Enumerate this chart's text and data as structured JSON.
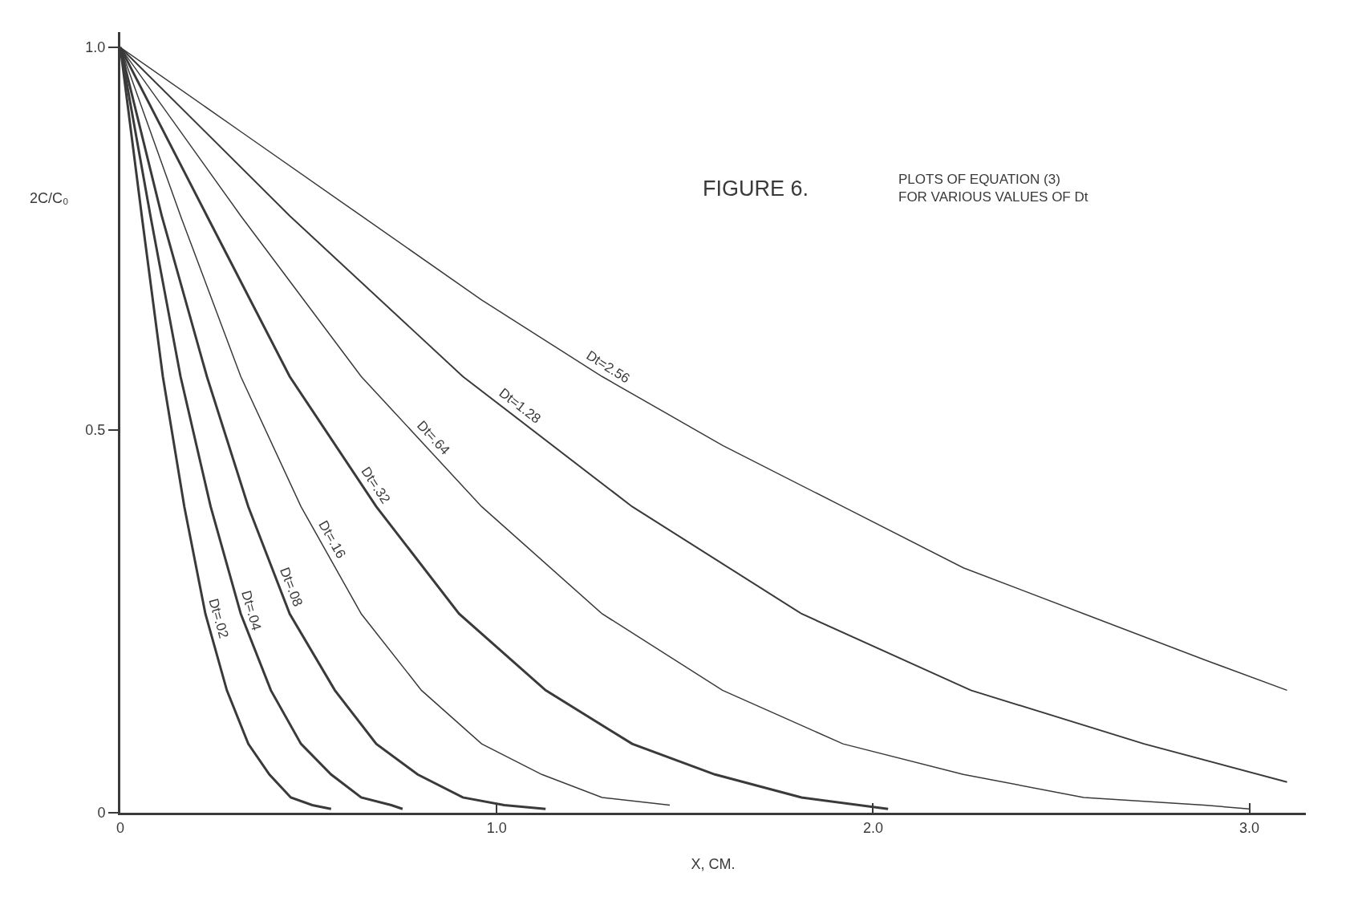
{
  "chart_data": {
    "type": "line",
    "title": "FIGURE 6.",
    "subtitle": "PLOTS OF EQUATION (3)\nFOR VARIOUS VALUES OF Dt",
    "xlabel": "X, CM.",
    "ylabel": "2C/C₀",
    "xlim": [
      0,
      3.15
    ],
    "ylim": [
      0,
      1.02
    ],
    "xticks": [
      {
        "value": 0,
        "label": "0"
      },
      {
        "value": 1,
        "label": "1.0"
      },
      {
        "value": 2,
        "label": "2.0"
      },
      {
        "value": 3,
        "label": "3.0"
      }
    ],
    "yticks": [
      {
        "value": 0,
        "label": "0"
      },
      {
        "value": 0.5,
        "label": "0.5"
      },
      {
        "value": 1,
        "label": "1.0"
      }
    ],
    "grid": false,
    "legend": false,
    "marker": "none",
    "line_style": "solid",
    "series": [
      {
        "name": "Dt=.02",
        "color": "#3a3a3a",
        "x": [
          0,
          0.057,
          0.113,
          0.17,
          0.226,
          0.283,
          0.34,
          0.396,
          0.453,
          0.51,
          0.56
        ],
        "values": [
          1,
          0.78,
          0.57,
          0.4,
          0.26,
          0.16,
          0.09,
          0.05,
          0.02,
          0.01,
          0.005
        ]
      },
      {
        "name": "Dt=.04",
        "color": "#3a3a3a",
        "x": [
          0,
          0.08,
          0.16,
          0.24,
          0.32,
          0.4,
          0.48,
          0.56,
          0.64,
          0.72,
          0.75
        ],
        "values": [
          1,
          0.78,
          0.57,
          0.4,
          0.26,
          0.16,
          0.09,
          0.05,
          0.02,
          0.01,
          0.005
        ]
      },
      {
        "name": "Dt=.08",
        "color": "#3a3a3a",
        "x": [
          0,
          0.11,
          0.23,
          0.34,
          0.45,
          0.57,
          0.68,
          0.79,
          0.91,
          1.02,
          1.13
        ],
        "values": [
          1,
          0.78,
          0.57,
          0.4,
          0.26,
          0.16,
          0.09,
          0.05,
          0.02,
          0.01,
          0.005
        ]
      },
      {
        "name": "Dt=.16",
        "color": "#3a3a3a",
        "x": [
          0,
          0.16,
          0.32,
          0.48,
          0.64,
          0.8,
          0.96,
          1.12,
          1.28,
          1.46
        ],
        "values": [
          1,
          0.78,
          0.57,
          0.4,
          0.26,
          0.16,
          0.09,
          0.05,
          0.02,
          0.01
        ]
      },
      {
        "name": "Dt=.32",
        "color": "#3a3a3a",
        "x": [
          0,
          0.23,
          0.45,
          0.68,
          0.9,
          1.13,
          1.36,
          1.58,
          1.81,
          2.04
        ],
        "values": [
          1,
          0.78,
          0.57,
          0.4,
          0.26,
          0.16,
          0.09,
          0.05,
          0.02,
          0.005
        ]
      },
      {
        "name": "Dt=.64",
        "color": "#3a3a3a",
        "x": [
          0,
          0.32,
          0.64,
          0.96,
          1.28,
          1.6,
          1.92,
          2.24,
          2.56,
          2.88,
          3.0
        ],
        "values": [
          1,
          0.78,
          0.57,
          0.4,
          0.26,
          0.16,
          0.09,
          0.05,
          0.02,
          0.01,
          0.005
        ]
      },
      {
        "name": "Dt=1.28",
        "color": "#3a3a3a",
        "x": [
          0,
          0.45,
          0.91,
          1.36,
          1.81,
          2.26,
          2.72,
          3.1
        ],
        "values": [
          1,
          0.78,
          0.57,
          0.4,
          0.26,
          0.16,
          0.09,
          0.04
        ]
      },
      {
        "name": "Dt=2.56",
        "color": "#3a3a3a",
        "x": [
          0,
          0.32,
          0.64,
          0.96,
          1.28,
          1.6,
          1.92,
          2.24,
          2.56,
          2.88,
          3.1
        ],
        "values": [
          1,
          0.89,
          0.78,
          0.67,
          0.57,
          0.48,
          0.4,
          0.32,
          0.26,
          0.2,
          0.16
        ]
      }
    ]
  }
}
